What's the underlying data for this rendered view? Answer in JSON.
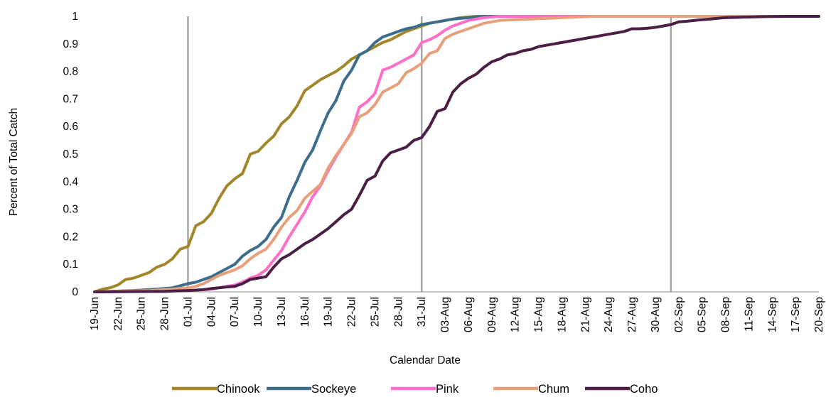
{
  "chart_data": {
    "type": "line",
    "title": "",
    "xlabel": "Calendar Date",
    "ylabel": "Percent of Total Catch",
    "x_start": "19-Jun",
    "x_end": "20-Sep",
    "ylim": [
      0,
      1
    ],
    "y_ticks": [
      "0",
      "0.1",
      "0.2",
      "0.3",
      "0.4",
      "0.5",
      "0.6",
      "0.7",
      "0.8",
      "0.9",
      "1"
    ],
    "x_tick_labels": [
      "19-Jun",
      "22-Jun",
      "25-Jun",
      "28-Jun",
      "01-Jul",
      "04-Jul",
      "07-Jul",
      "10-Jul",
      "13-Jul",
      "16-Jul",
      "19-Jul",
      "22-Jul",
      "25-Jul",
      "28-Jul",
      "31-Jul",
      "03-Aug",
      "06-Aug",
      "09-Aug",
      "12-Aug",
      "15-Aug",
      "18-Aug",
      "21-Aug",
      "24-Aug",
      "27-Aug",
      "30-Aug",
      "02-Sep",
      "05-Sep",
      "08-Sep",
      "11-Sep",
      "14-Sep",
      "17-Sep",
      "20-Sep"
    ],
    "reference_lines_x": [
      "01-Jul",
      "31-Jul",
      "01-Sep"
    ],
    "grid": false,
    "legend_position": "bottom",
    "series": [
      {
        "name": "Chinook",
        "color": "#a3862a",
        "points": [
          [
            "19-Jun",
            0
          ],
          [
            "20-Jun",
            0.01
          ],
          [
            "21-Jun",
            0.015
          ],
          [
            "22-Jun",
            0.025
          ],
          [
            "23-Jun",
            0.045
          ],
          [
            "24-Jun",
            0.05
          ],
          [
            "25-Jun",
            0.06
          ],
          [
            "26-Jun",
            0.07
          ],
          [
            "27-Jun",
            0.09
          ],
          [
            "28-Jun",
            0.1
          ],
          [
            "29-Jun",
            0.12
          ],
          [
            "30-Jun",
            0.155
          ],
          [
            "01-Jul",
            0.165
          ],
          [
            "02-Jul",
            0.24
          ],
          [
            "03-Jul",
            0.255
          ],
          [
            "04-Jul",
            0.285
          ],
          [
            "05-Jul",
            0.34
          ],
          [
            "06-Jul",
            0.385
          ],
          [
            "07-Jul",
            0.41
          ],
          [
            "08-Jul",
            0.43
          ],
          [
            "09-Jul",
            0.5
          ],
          [
            "10-Jul",
            0.51
          ],
          [
            "11-Jul",
            0.54
          ],
          [
            "12-Jul",
            0.565
          ],
          [
            "13-Jul",
            0.61
          ],
          [
            "14-Jul",
            0.635
          ],
          [
            "15-Jul",
            0.675
          ],
          [
            "16-Jul",
            0.73
          ],
          [
            "17-Jul",
            0.75
          ],
          [
            "18-Jul",
            0.77
          ],
          [
            "19-Jul",
            0.785
          ],
          [
            "20-Jul",
            0.8
          ],
          [
            "21-Jul",
            0.82
          ],
          [
            "22-Jul",
            0.845
          ],
          [
            "23-Jul",
            0.86
          ],
          [
            "24-Jul",
            0.875
          ],
          [
            "25-Jul",
            0.89
          ],
          [
            "26-Jul",
            0.905
          ],
          [
            "27-Jul",
            0.915
          ],
          [
            "28-Jul",
            0.93
          ],
          [
            "29-Jul",
            0.945
          ],
          [
            "30-Jul",
            0.955
          ],
          [
            "31-Jul",
            0.965
          ],
          [
            "01-Aug",
            0.975
          ],
          [
            "02-Aug",
            0.98
          ],
          [
            "03-Aug",
            0.985
          ],
          [
            "04-Aug",
            0.99
          ],
          [
            "05-Aug",
            0.995
          ],
          [
            "07-Aug",
            1.0
          ],
          [
            "20-Sep",
            1.0
          ]
        ]
      },
      {
        "name": "Sockeye",
        "color": "#3c6e8c",
        "points": [
          [
            "19-Jun",
            0
          ],
          [
            "24-Jun",
            0.005
          ],
          [
            "27-Jun",
            0.01
          ],
          [
            "29-Jun",
            0.015
          ],
          [
            "01-Jul",
            0.03
          ],
          [
            "02-Jul",
            0.035
          ],
          [
            "03-Jul",
            0.045
          ],
          [
            "04-Jul",
            0.055
          ],
          [
            "05-Jul",
            0.07
          ],
          [
            "06-Jul",
            0.085
          ],
          [
            "07-Jul",
            0.1
          ],
          [
            "08-Jul",
            0.13
          ],
          [
            "09-Jul",
            0.15
          ],
          [
            "10-Jul",
            0.165
          ],
          [
            "11-Jul",
            0.19
          ],
          [
            "12-Jul",
            0.235
          ],
          [
            "13-Jul",
            0.27
          ],
          [
            "14-Jul",
            0.345
          ],
          [
            "15-Jul",
            0.405
          ],
          [
            "16-Jul",
            0.47
          ],
          [
            "17-Jul",
            0.515
          ],
          [
            "18-Jul",
            0.585
          ],
          [
            "19-Jul",
            0.65
          ],
          [
            "20-Jul",
            0.695
          ],
          [
            "21-Jul",
            0.765
          ],
          [
            "22-Jul",
            0.805
          ],
          [
            "23-Jul",
            0.86
          ],
          [
            "24-Jul",
            0.875
          ],
          [
            "25-Jul",
            0.905
          ],
          [
            "26-Jul",
            0.925
          ],
          [
            "27-Jul",
            0.935
          ],
          [
            "28-Jul",
            0.945
          ],
          [
            "29-Jul",
            0.955
          ],
          [
            "30-Jul",
            0.96
          ],
          [
            "31-Jul",
            0.97
          ],
          [
            "01-Aug",
            0.975
          ],
          [
            "02-Aug",
            0.98
          ],
          [
            "04-Aug",
            0.99
          ],
          [
            "06-Aug",
            0.995
          ],
          [
            "08-Aug",
            1.0
          ],
          [
            "20-Sep",
            1.0
          ]
        ]
      },
      {
        "name": "Pink",
        "color": "#ff6ec7",
        "points": [
          [
            "19-Jun",
            0
          ],
          [
            "01-Jul",
            0.005
          ],
          [
            "04-Jul",
            0.01
          ],
          [
            "06-Jul",
            0.02
          ],
          [
            "07-Jul",
            0.025
          ],
          [
            "08-Jul",
            0.035
          ],
          [
            "09-Jul",
            0.05
          ],
          [
            "10-Jul",
            0.06
          ],
          [
            "11-Jul",
            0.08
          ],
          [
            "12-Jul",
            0.115
          ],
          [
            "13-Jul",
            0.15
          ],
          [
            "14-Jul",
            0.2
          ],
          [
            "15-Jul",
            0.245
          ],
          [
            "16-Jul",
            0.29
          ],
          [
            "17-Jul",
            0.345
          ],
          [
            "18-Jul",
            0.385
          ],
          [
            "19-Jul",
            0.44
          ],
          [
            "20-Jul",
            0.49
          ],
          [
            "21-Jul",
            0.535
          ],
          [
            "22-Jul",
            0.58
          ],
          [
            "23-Jul",
            0.67
          ],
          [
            "24-Jul",
            0.69
          ],
          [
            "25-Jul",
            0.72
          ],
          [
            "26-Jul",
            0.805
          ],
          [
            "27-Jul",
            0.815
          ],
          [
            "28-Jul",
            0.83
          ],
          [
            "29-Jul",
            0.845
          ],
          [
            "30-Jul",
            0.86
          ],
          [
            "31-Jul",
            0.905
          ],
          [
            "01-Aug",
            0.915
          ],
          [
            "02-Aug",
            0.93
          ],
          [
            "03-Aug",
            0.95
          ],
          [
            "04-Aug",
            0.965
          ],
          [
            "05-Aug",
            0.975
          ],
          [
            "06-Aug",
            0.985
          ],
          [
            "07-Aug",
            0.99
          ],
          [
            "08-Aug",
            0.995
          ],
          [
            "10-Aug",
            1.0
          ],
          [
            "20-Sep",
            1.0
          ]
        ]
      },
      {
        "name": "Chum",
        "color": "#e8a07c",
        "points": [
          [
            "19-Jun",
            0
          ],
          [
            "26-Jun",
            0.005
          ],
          [
            "29-Jun",
            0.01
          ],
          [
            "01-Jul",
            0.015
          ],
          [
            "02-Jul",
            0.02
          ],
          [
            "03-Jul",
            0.03
          ],
          [
            "04-Jul",
            0.045
          ],
          [
            "05-Jul",
            0.06
          ],
          [
            "06-Jul",
            0.07
          ],
          [
            "07-Jul",
            0.08
          ],
          [
            "08-Jul",
            0.095
          ],
          [
            "09-Jul",
            0.12
          ],
          [
            "10-Jul",
            0.14
          ],
          [
            "11-Jul",
            0.155
          ],
          [
            "12-Jul",
            0.19
          ],
          [
            "13-Jul",
            0.235
          ],
          [
            "14-Jul",
            0.27
          ],
          [
            "15-Jul",
            0.295
          ],
          [
            "16-Jul",
            0.34
          ],
          [
            "17-Jul",
            0.365
          ],
          [
            "18-Jul",
            0.39
          ],
          [
            "19-Jul",
            0.45
          ],
          [
            "20-Jul",
            0.495
          ],
          [
            "21-Jul",
            0.535
          ],
          [
            "22-Jul",
            0.575
          ],
          [
            "23-Jul",
            0.635
          ],
          [
            "24-Jul",
            0.65
          ],
          [
            "25-Jul",
            0.68
          ],
          [
            "26-Jul",
            0.725
          ],
          [
            "27-Jul",
            0.74
          ],
          [
            "28-Jul",
            0.755
          ],
          [
            "29-Jul",
            0.795
          ],
          [
            "30-Jul",
            0.81
          ],
          [
            "31-Jul",
            0.83
          ],
          [
            "01-Aug",
            0.865
          ],
          [
            "02-Aug",
            0.875
          ],
          [
            "03-Aug",
            0.92
          ],
          [
            "04-Aug",
            0.935
          ],
          [
            "05-Aug",
            0.945
          ],
          [
            "06-Aug",
            0.955
          ],
          [
            "07-Aug",
            0.965
          ],
          [
            "08-Aug",
            0.975
          ],
          [
            "10-Aug",
            0.985
          ],
          [
            "14-Aug",
            0.99
          ],
          [
            "18-Aug",
            0.995
          ],
          [
            "22-Aug",
            1.0
          ],
          [
            "20-Sep",
            1.0
          ]
        ]
      },
      {
        "name": "Coho",
        "color": "#4b1f45",
        "points": [
          [
            "19-Jun",
            0
          ],
          [
            "28-Jun",
            0.002
          ],
          [
            "01-Jul",
            0.005
          ],
          [
            "03-Jul",
            0.008
          ],
          [
            "04-Jul",
            0.012
          ],
          [
            "05-Jul",
            0.015
          ],
          [
            "06-Jul",
            0.018
          ],
          [
            "07-Jul",
            0.02
          ],
          [
            "08-Jul",
            0.03
          ],
          [
            "09-Jul",
            0.045
          ],
          [
            "10-Jul",
            0.05
          ],
          [
            "11-Jul",
            0.055
          ],
          [
            "12-Jul",
            0.09
          ],
          [
            "13-Jul",
            0.12
          ],
          [
            "14-Jul",
            0.135
          ],
          [
            "15-Jul",
            0.155
          ],
          [
            "16-Jul",
            0.175
          ],
          [
            "17-Jul",
            0.19
          ],
          [
            "18-Jul",
            0.21
          ],
          [
            "19-Jul",
            0.23
          ],
          [
            "20-Jul",
            0.255
          ],
          [
            "21-Jul",
            0.28
          ],
          [
            "22-Jul",
            0.3
          ],
          [
            "23-Jul",
            0.35
          ],
          [
            "24-Jul",
            0.405
          ],
          [
            "25-Jul",
            0.42
          ],
          [
            "26-Jul",
            0.475
          ],
          [
            "27-Jul",
            0.505
          ],
          [
            "28-Jul",
            0.515
          ],
          [
            "29-Jul",
            0.525
          ],
          [
            "30-Jul",
            0.55
          ],
          [
            "31-Jul",
            0.56
          ],
          [
            "01-Aug",
            0.6
          ],
          [
            "02-Aug",
            0.655
          ],
          [
            "03-Aug",
            0.665
          ],
          [
            "04-Aug",
            0.725
          ],
          [
            "05-Aug",
            0.755
          ],
          [
            "06-Aug",
            0.775
          ],
          [
            "07-Aug",
            0.79
          ],
          [
            "08-Aug",
            0.815
          ],
          [
            "09-Aug",
            0.835
          ],
          [
            "10-Aug",
            0.845
          ],
          [
            "11-Aug",
            0.86
          ],
          [
            "12-Aug",
            0.865
          ],
          [
            "13-Aug",
            0.875
          ],
          [
            "14-Aug",
            0.88
          ],
          [
            "15-Aug",
            0.89
          ],
          [
            "16-Aug",
            0.895
          ],
          [
            "17-Aug",
            0.9
          ],
          [
            "18-Aug",
            0.905
          ],
          [
            "19-Aug",
            0.91
          ],
          [
            "20-Aug",
            0.915
          ],
          [
            "21-Aug",
            0.92
          ],
          [
            "22-Aug",
            0.925
          ],
          [
            "23-Aug",
            0.93
          ],
          [
            "24-Aug",
            0.935
          ],
          [
            "25-Aug",
            0.94
          ],
          [
            "26-Aug",
            0.945
          ],
          [
            "27-Aug",
            0.955
          ],
          [
            "28-Aug",
            0.955
          ],
          [
            "29-Aug",
            0.957
          ],
          [
            "30-Aug",
            0.96
          ],
          [
            "31-Aug",
            0.965
          ],
          [
            "01-Sep",
            0.97
          ],
          [
            "02-Sep",
            0.98
          ],
          [
            "03-Sep",
            0.982
          ],
          [
            "04-Sep",
            0.985
          ],
          [
            "05-Sep",
            0.988
          ],
          [
            "06-Sep",
            0.99
          ],
          [
            "07-Sep",
            0.993
          ],
          [
            "08-Sep",
            0.995
          ],
          [
            "10-Sep",
            0.997
          ],
          [
            "13-Sep",
            0.999
          ],
          [
            "16-Sep",
            1.0
          ],
          [
            "20-Sep",
            1.0
          ]
        ]
      }
    ]
  }
}
